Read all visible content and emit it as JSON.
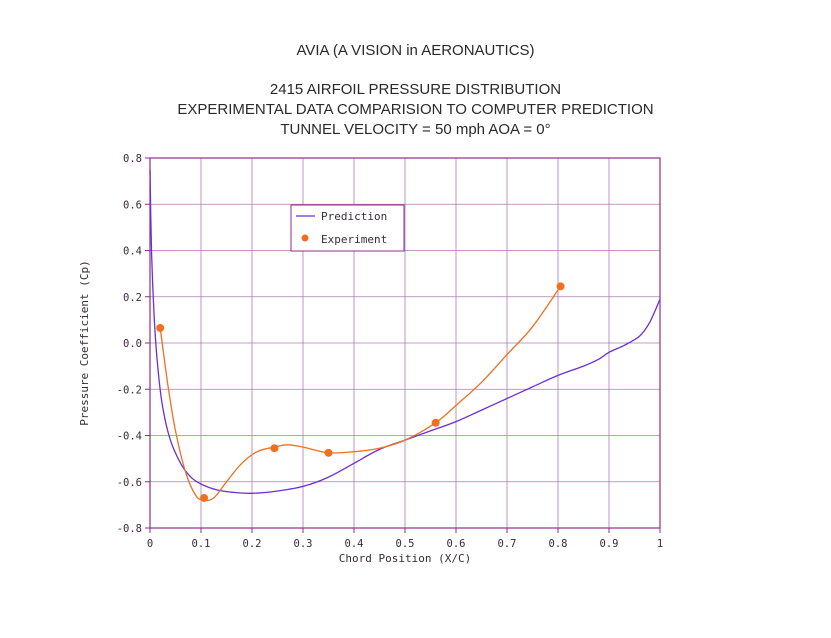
{
  "page_title": "AVIA (A VISION in AERONAUTICS)",
  "chart_data": {
    "type": "line",
    "title_lines": [
      "2415 AIRFOIL PRESSURE DISTRIBUTION",
      "EXPERIMENTAL DATA COMPARISION TO COMPUTER PREDICTION",
      "TUNNEL VELOCITY = 50 mph  AOA = 0°"
    ],
    "xlabel": "Chord Position (X/C)",
    "ylabel": "Pressure Coefficient (Cp)",
    "xlim": [
      0,
      1
    ],
    "ylim": [
      -0.8,
      0.8
    ],
    "xticks": [
      0,
      0.1,
      0.2,
      0.3,
      0.4,
      0.5,
      0.6,
      0.7,
      0.8,
      0.9,
      1
    ],
    "xtick_labels": [
      "0",
      "0.1",
      "0.2",
      "0.3",
      "0.4",
      "0.5",
      "0.6",
      "0.7",
      "0.8",
      "0.9",
      "1"
    ],
    "yticks": [
      0.8,
      0.6,
      0.4,
      0.2,
      0.0,
      -0.2,
      -0.4,
      -0.6,
      -0.8
    ],
    "ytick_labels": [
      "0.8",
      "0.6",
      "0.4",
      "0.2",
      "0.0",
      "-0.2",
      "-0.4",
      "-0.6",
      "-0.8"
    ],
    "grid": true,
    "legend_position": "upper-center",
    "series": [
      {
        "name": "Prediction",
        "kind": "line",
        "color": "#6a2fd6",
        "x": [
          0.0,
          0.003,
          0.008,
          0.015,
          0.025,
          0.04,
          0.06,
          0.08,
          0.1,
          0.13,
          0.16,
          0.2,
          0.25,
          0.3,
          0.35,
          0.4,
          0.45,
          0.5,
          0.55,
          0.6,
          0.65,
          0.7,
          0.75,
          0.8,
          0.85,
          0.88,
          0.9,
          0.93,
          0.96,
          0.98,
          1.0
        ],
        "y": [
          0.75,
          0.4,
          0.12,
          -0.1,
          -0.28,
          -0.42,
          -0.52,
          -0.58,
          -0.61,
          -0.635,
          -0.645,
          -0.65,
          -0.64,
          -0.62,
          -0.58,
          -0.52,
          -0.46,
          -0.42,
          -0.38,
          -0.34,
          -0.29,
          -0.24,
          -0.19,
          -0.14,
          -0.1,
          -0.07,
          -0.04,
          -0.01,
          0.03,
          0.09,
          0.19
        ]
      },
      {
        "name": "Experiment",
        "kind": "scatter",
        "color": "#f07020",
        "x": [
          0.02,
          0.106,
          0.244,
          0.35,
          0.56,
          0.805
        ],
        "y": [
          0.065,
          -0.67,
          -0.455,
          -0.475,
          -0.345,
          0.245
        ],
        "fit_x": [
          0.02,
          0.035,
          0.05,
          0.07,
          0.09,
          0.106,
          0.125,
          0.15,
          0.18,
          0.21,
          0.244,
          0.27,
          0.3,
          0.35,
          0.4,
          0.45,
          0.5,
          0.56,
          0.6,
          0.65,
          0.7,
          0.75,
          0.805
        ],
        "fit_y": [
          0.065,
          -0.18,
          -0.38,
          -0.56,
          -0.66,
          -0.68,
          -0.67,
          -0.6,
          -0.52,
          -0.47,
          -0.45,
          -0.44,
          -0.45,
          -0.475,
          -0.47,
          -0.455,
          -0.42,
          -0.345,
          -0.27,
          -0.17,
          -0.05,
          0.07,
          0.245
        ]
      }
    ]
  }
}
